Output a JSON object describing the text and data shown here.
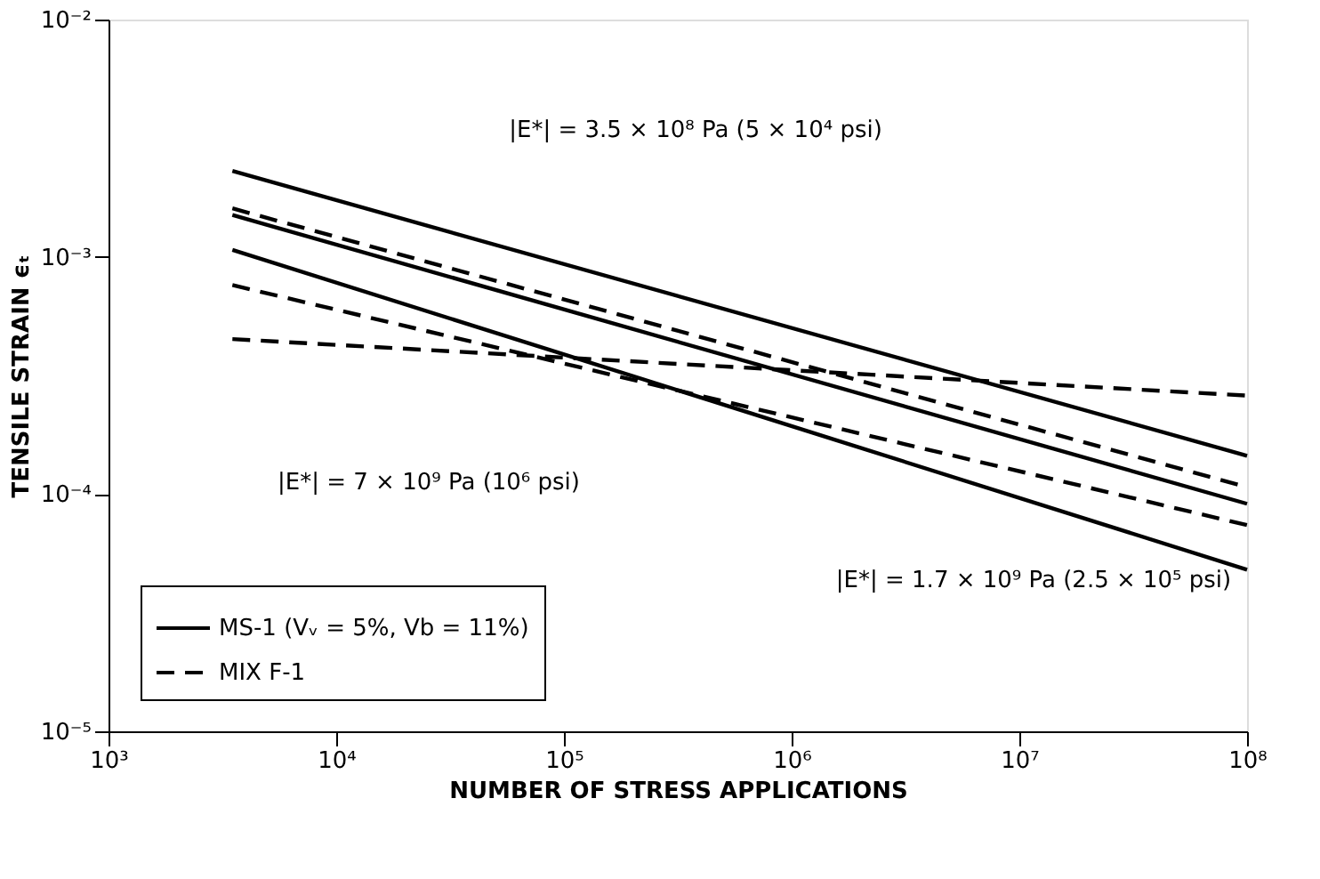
{
  "chart_data": {
    "type": "line",
    "xlabel": "NUMBER OF STRESS APPLICATIONS",
    "ylabel": "TENSILE STRAIN ϵₜ",
    "log": "xy",
    "grid": false,
    "legend": "bottom left",
    "marker": "none",
    "xlim": [
      1000,
      100000000
    ],
    "ylim": [
      1e-05,
      0.01
    ],
    "xticks": [
      {
        "value": 1000,
        "label": "10³"
      },
      {
        "value": 10000,
        "label": "10⁴"
      },
      {
        "value": 100000,
        "label": "10⁵"
      },
      {
        "value": 1000000,
        "label": "10⁶"
      },
      {
        "value": 10000000,
        "label": "10⁷"
      },
      {
        "value": 100000000,
        "label": "10⁸"
      }
    ],
    "yticks": [
      {
        "value": 1e-05,
        "label": "10⁻⁵"
      },
      {
        "value": 0.0001,
        "label": "10⁻⁴"
      },
      {
        "value": 0.001,
        "label": "10⁻³"
      },
      {
        "value": 0.01,
        "label": "10⁻²"
      }
    ],
    "x": [
      3500,
      100000000
    ],
    "series": [
      {
        "name": "MS-1 (Vᵥ = 5%, Vb = 11%)",
        "color": "#000000",
        "line_style": "solid",
        "values": [
          0.0023,
          0.000145
        ]
      },
      {
        "name": "MIX F-1",
        "color": "#000000",
        "line_style": "dashed",
        "values": [
          0.0016,
          0.000107
        ]
      },
      {
        "color": "#000000",
        "line_style": "solid",
        "values": [
          0.0015,
          9.1e-05
        ]
      },
      {
        "color": "#000000",
        "line_style": "solid",
        "values": [
          0.00107,
          4.8e-05
        ]
      },
      {
        "color": "#000000",
        "line_style": "dashed",
        "values": [
          0.00076,
          7.4e-05
        ]
      },
      {
        "color": "#000000",
        "line_style": "dashed",
        "values": [
          0.00045,
          0.00026
        ]
      }
    ],
    "annotations": [
      "|E*| = 3.5 × 10⁸ Pa (5 × 10⁴ psi)",
      "|E*| = 7 × 10⁹ Pa (10⁶ psi)",
      "|E*| = 1.7 × 10⁹ Pa (2.5 × 10⁵ psi)"
    ]
  }
}
